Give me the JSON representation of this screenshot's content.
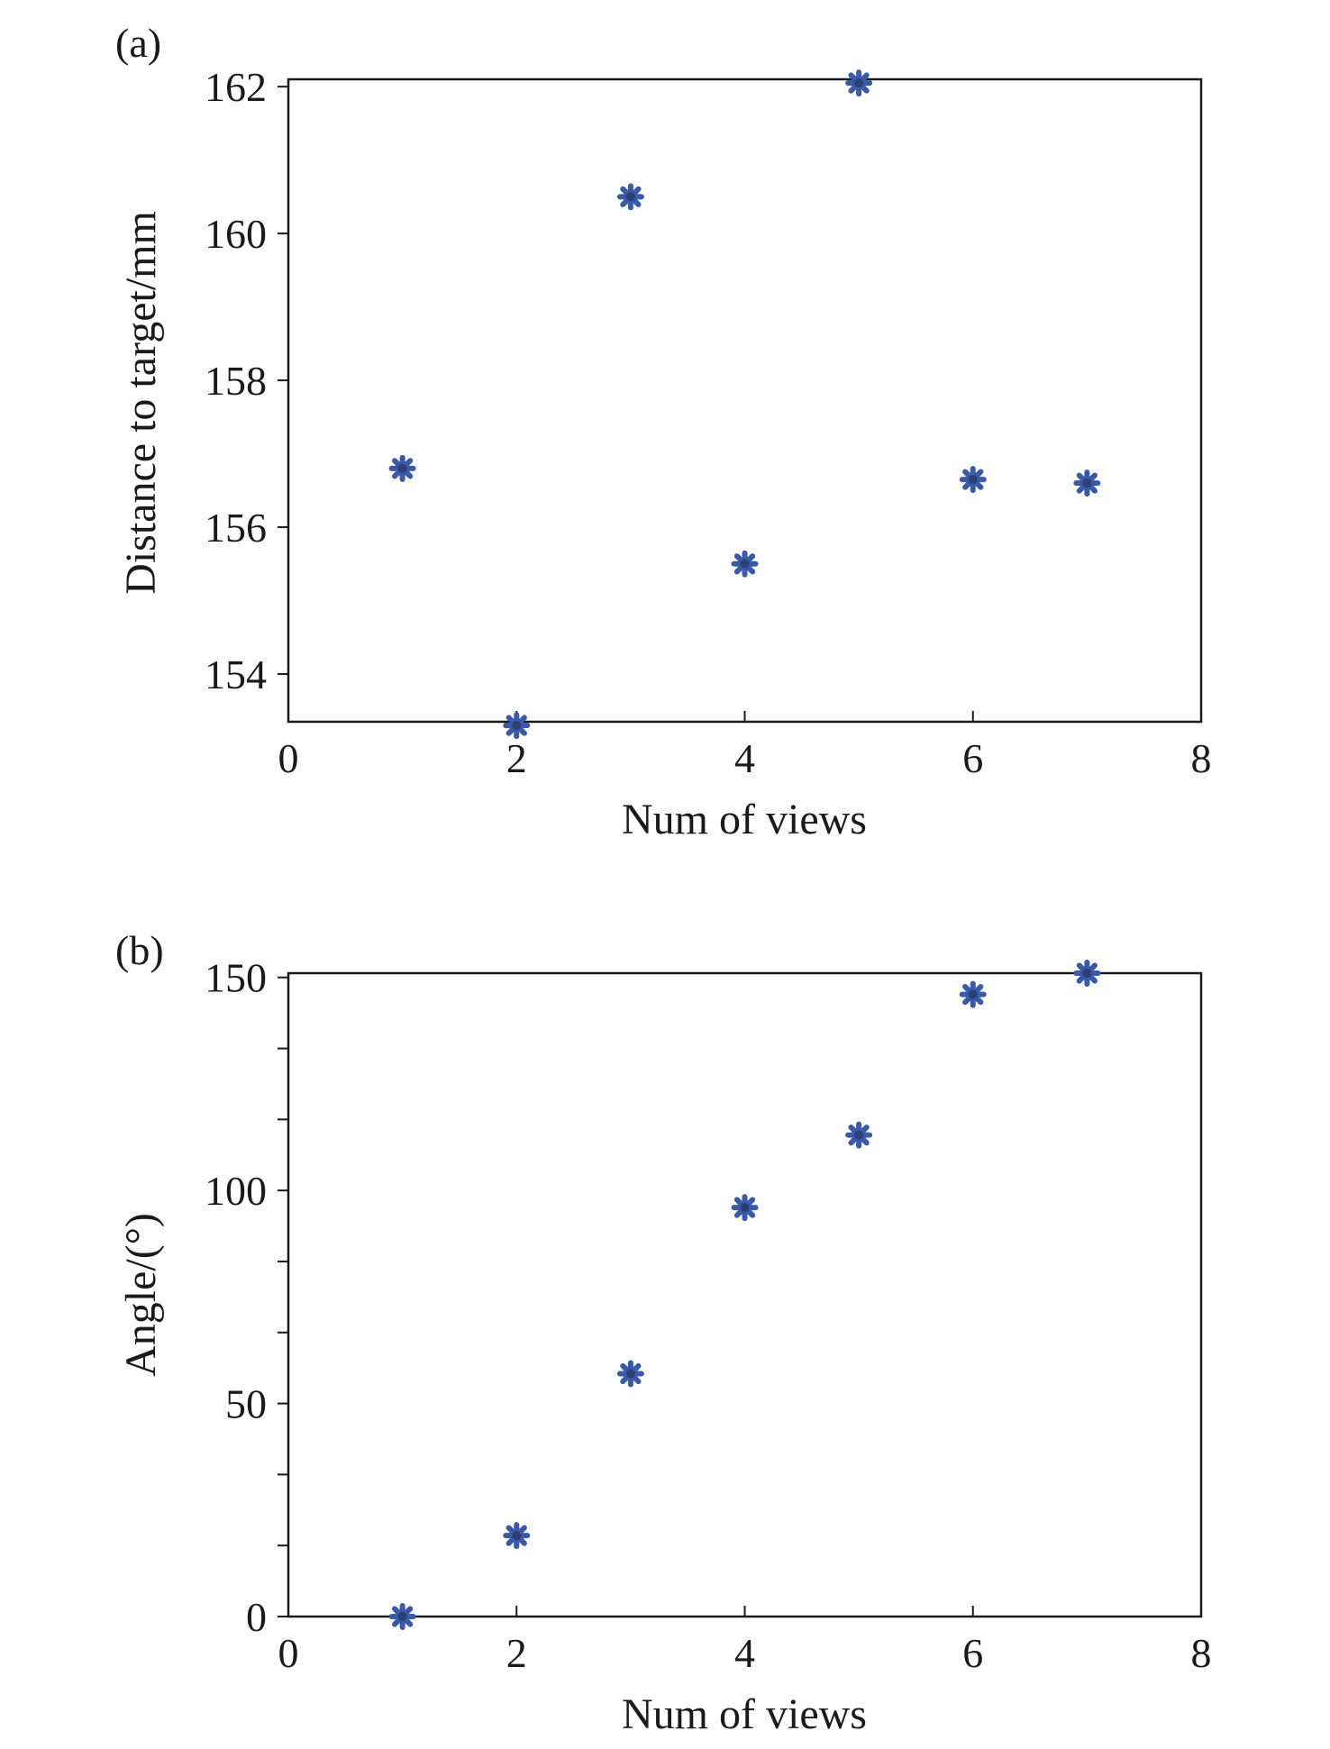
{
  "colors": {
    "marker": "#3a5aa8",
    "marker_edge": "#2b3f78",
    "axis": "#1a1a1a"
  },
  "chart_data": [
    {
      "type": "scatter",
      "panel_label": "(a)",
      "xlabel": "Num of views",
      "ylabel": "Distance to target/mm",
      "xlim": [
        0,
        8
      ],
      "ylim": [
        153.35,
        162.1
      ],
      "xticks": [
        0,
        2,
        4,
        6,
        8
      ],
      "yticks": [
        154,
        156,
        158,
        160,
        162
      ],
      "yticks_labeled": [
        154,
        156,
        158,
        160,
        162
      ],
      "marker": "asterisk",
      "grid": false,
      "x": [
        1,
        2,
        3,
        4,
        5,
        6,
        7
      ],
      "y": [
        156.8,
        153.3,
        160.5,
        155.5,
        162.05,
        156.65,
        156.6
      ]
    },
    {
      "type": "scatter",
      "panel_label": "(b)",
      "xlabel": "Num of views",
      "ylabel": "Angle/(°)",
      "xlim": [
        0,
        8
      ],
      "ylim": [
        0,
        151
      ],
      "xticks": [
        0,
        2,
        4,
        6,
        8
      ],
      "yticks": [
        0,
        16.67,
        33.33,
        50,
        66.67,
        83.33,
        100,
        116.67,
        133.33,
        150
      ],
      "yticks_labeled": [
        0,
        50,
        100,
        150
      ],
      "marker": "asterisk",
      "grid": false,
      "x": [
        1,
        2,
        3,
        4,
        5,
        6,
        7
      ],
      "y": [
        0,
        19,
        57,
        96,
        113,
        146,
        151
      ]
    }
  ]
}
